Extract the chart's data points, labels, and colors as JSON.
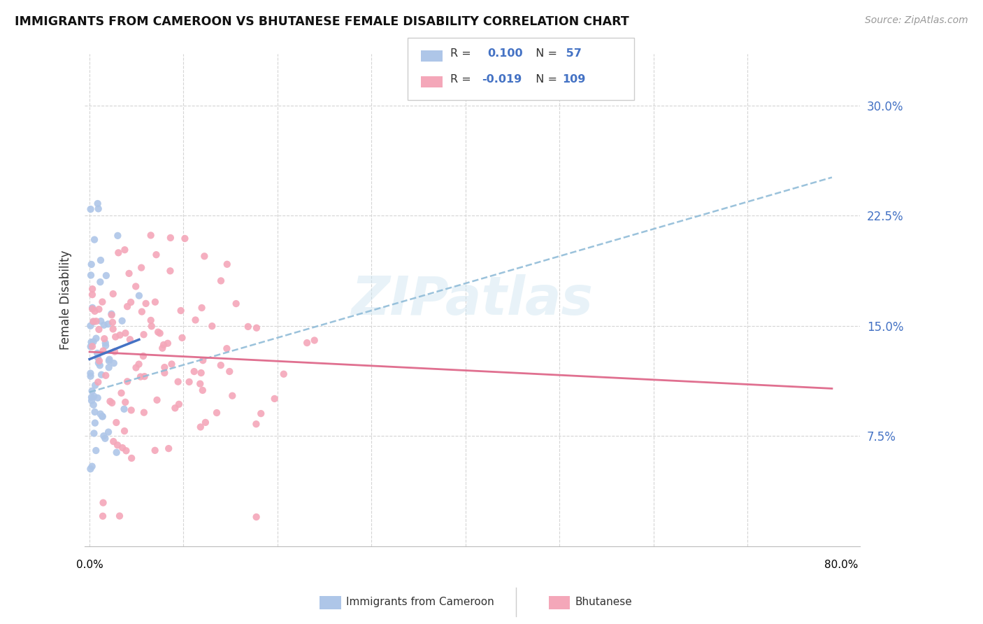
{
  "title": "IMMIGRANTS FROM CAMEROON VS BHUTANESE FEMALE DISABILITY CORRELATION CHART",
  "source": "Source: ZipAtlas.com",
  "ylabel": "Female Disability",
  "ytick_labels": [
    "7.5%",
    "15.0%",
    "22.5%",
    "30.0%"
  ],
  "ytick_values": [
    0.075,
    0.15,
    0.225,
    0.3
  ],
  "xlim": [
    -0.005,
    0.82
  ],
  "ylim": [
    0.0,
    0.335
  ],
  "color_cameroon": "#aec6e8",
  "color_bhutanese": "#f4a7b9",
  "color_line_cameroon": "#4472c4",
  "color_line_bhutanese": "#e07090",
  "color_line_dashed": "#90bcd8",
  "watermark": "ZIPatlas",
  "r_cameroon": 0.1,
  "n_cameroon": 57,
  "r_bhutanese": -0.019,
  "n_bhutanese": 109
}
